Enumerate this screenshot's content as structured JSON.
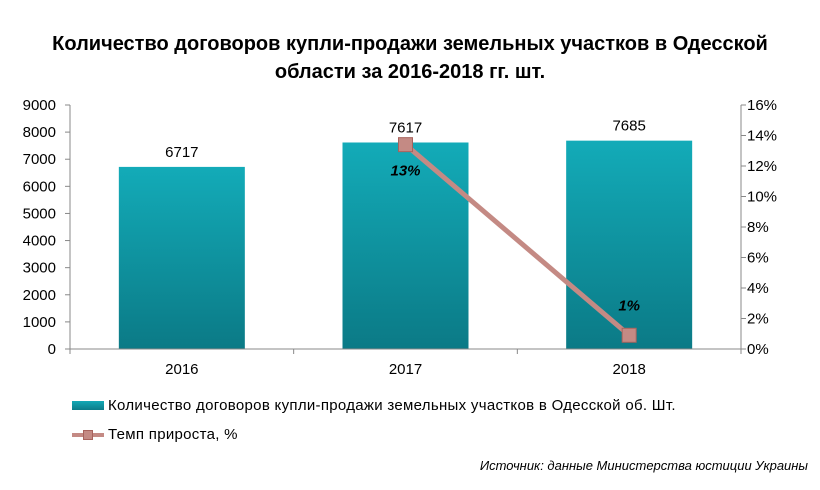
{
  "title_line1": "Количество договоров купли-продажи земельных участков в Одесской",
  "title_line2": "области за 2016-2018 гг. шт.",
  "source": "Источник: данные Министерства юстиции Украины",
  "chart_data": {
    "type": "bar",
    "categories": [
      "2016",
      "2017",
      "2018"
    ],
    "series": [
      {
        "name": "Количество договоров купли-продажи земельных участков в Одесской об. Шт.",
        "type": "bar",
        "axis": "left",
        "values": [
          6717,
          7617,
          7685
        ],
        "labels": [
          "6717",
          "7617",
          "7685"
        ],
        "color": "#0f98a5"
      },
      {
        "name": "Темп прироста, %",
        "type": "line",
        "axis": "right",
        "values": [
          null,
          13.4,
          0.9
        ],
        "labels": [
          "",
          "13%",
          "1%"
        ],
        "color": "#c48a84"
      }
    ],
    "y_left": {
      "min": 0,
      "max": 9000,
      "ticks": [
        "0",
        "1000",
        "2000",
        "3000",
        "4000",
        "5000",
        "6000",
        "7000",
        "8000",
        "9000"
      ]
    },
    "y_right": {
      "min": 0,
      "max": 16,
      "ticks": [
        "0%",
        "2%",
        "4%",
        "6%",
        "8%",
        "10%",
        "12%",
        "14%",
        "16%"
      ]
    },
    "grid": false,
    "legend": "bottom"
  }
}
